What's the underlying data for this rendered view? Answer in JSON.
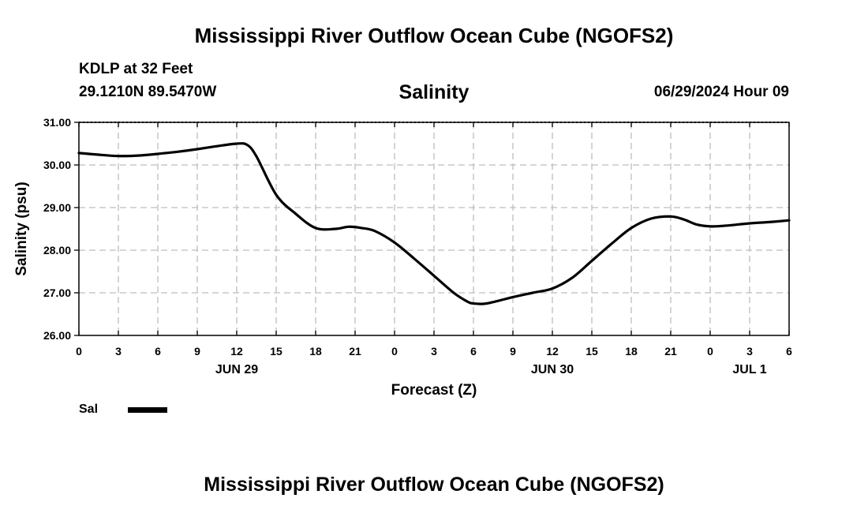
{
  "header": {
    "title": "Mississippi River Outflow Ocean Cube (NGOFS2)",
    "station": "KDLP at 32 Feet",
    "coords": "29.1210N  89.5470W",
    "datetime": "06/29/2024 Hour 09"
  },
  "footer": {
    "title": "Mississippi River Outflow Ocean Cube (NGOFS2)"
  },
  "chart_data": {
    "type": "line",
    "title": "Salinity",
    "xlabel": "Forecast (Z)",
    "ylabel": "Salinity (psu)",
    "ylim": [
      26.0,
      31.0
    ],
    "xlim": [
      0,
      54
    ],
    "yticks": [
      "26.00",
      "27.00",
      "28.00",
      "29.00",
      "30.00",
      "31.00"
    ],
    "xticks": [
      "0",
      "3",
      "6",
      "9",
      "12",
      "15",
      "18",
      "21",
      "0",
      "3",
      "6",
      "9",
      "12",
      "15",
      "18",
      "21",
      "0",
      "3",
      "6"
    ],
    "date_labels": [
      {
        "label": "JUN 29",
        "hour": 12
      },
      {
        "label": "JUN 30",
        "hour": 36
      },
      {
        "label": "JUL 1",
        "hour": 51
      }
    ],
    "grid": true,
    "legend": [
      {
        "name": "Sal",
        "color": "#000000"
      }
    ],
    "series": [
      {
        "name": "Sal",
        "color": "#000000",
        "x": [
          0,
          1.5,
          3,
          4.5,
          6,
          7.5,
          9,
          10.5,
          12,
          12.8,
          13.5,
          15,
          16.5,
          18,
          19.5,
          20.5,
          21.5,
          22.5,
          24,
          25.5,
          27,
          28.5,
          29.5,
          30,
          31,
          33,
          34.5,
          36,
          37.5,
          39,
          40.5,
          42,
          43.5,
          45,
          46,
          47,
          48,
          49,
          51,
          52.5,
          54
        ],
        "values": [
          30.28,
          30.24,
          30.21,
          30.22,
          30.26,
          30.31,
          30.37,
          30.44,
          30.5,
          30.47,
          30.2,
          29.3,
          28.85,
          28.52,
          28.5,
          28.55,
          28.52,
          28.45,
          28.18,
          27.8,
          27.4,
          27.0,
          26.8,
          26.75,
          26.75,
          26.9,
          27.0,
          27.1,
          27.35,
          27.75,
          28.15,
          28.52,
          28.74,
          28.79,
          28.72,
          28.6,
          28.56,
          28.57,
          28.63,
          28.66,
          28.7
        ]
      }
    ]
  }
}
